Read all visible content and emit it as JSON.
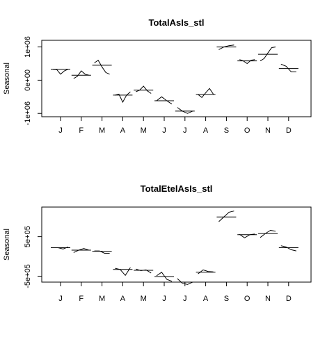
{
  "chart_data": [
    {
      "type": "line",
      "title": "TotalAsIs_stl",
      "ylabel": "Seasonal",
      "xlabel": "",
      "categories": [
        "J",
        "F",
        "M",
        "A",
        "M",
        "J",
        "J",
        "A",
        "S",
        "O",
        "N",
        "D"
      ],
      "ylim": [
        -1100000,
        1200000
      ],
      "yticks": [
        -1000000,
        0,
        1000000
      ],
      "ytick_labels": [
        "-1e+06",
        "0e+00",
        "1e+06"
      ],
      "grid": false,
      "months": [
        {
          "label": "J",
          "mean": 330000,
          "values": [
            330000,
            320000,
            180000,
            280000,
            330000
          ]
        },
        {
          "label": "F",
          "mean": 150000,
          "values": [
            50000,
            120000,
            280000,
            180000,
            150000
          ]
        },
        {
          "label": "M",
          "mean": 450000,
          "values": [
            520000,
            600000,
            400000,
            230000,
            180000
          ]
        },
        {
          "label": "A",
          "mean": -450000,
          "values": [
            -450000,
            -420000,
            -660000,
            -450000,
            -350000
          ]
        },
        {
          "label": "M",
          "mean": -300000,
          "values": [
            -350000,
            -300000,
            -180000,
            -320000,
            -400000
          ]
        },
        {
          "label": "J",
          "mean": -620000,
          "values": [
            -620000,
            -500000,
            -620000,
            -720000
          ]
        },
        {
          "label": "J",
          "mean": -930000,
          "values": [
            -820000,
            -930000,
            -1000000,
            -930000
          ]
        },
        {
          "label": "A",
          "mean": -430000,
          "values": [
            -430000,
            -520000,
            -380000,
            -250000,
            -420000
          ]
        },
        {
          "label": "S",
          "mean": 1000000,
          "values": [
            920000,
            1000000,
            1040000,
            1060000
          ]
        },
        {
          "label": "O",
          "mean": 580000,
          "values": [
            620000,
            580000,
            500000,
            600000,
            620000
          ]
        },
        {
          "label": "N",
          "mean": 780000,
          "values": [
            580000,
            650000,
            820000,
            980000,
            1000000
          ]
        },
        {
          "label": "D",
          "mean": 350000,
          "values": [
            480000,
            420000,
            250000,
            250000
          ]
        }
      ]
    },
    {
      "type": "line",
      "title": "TotalEtelAsIs_stl",
      "ylabel": "Seasonal",
      "xlabel": "",
      "categories": [
        "J",
        "F",
        "M",
        "A",
        "M",
        "J",
        "J",
        "A",
        "S",
        "O",
        "N",
        "D"
      ],
      "ylim": [
        -650000,
        1250000
      ],
      "yticks": [
        -500000,
        500000
      ],
      "ytick_labels": [
        "-5e+05",
        "5e+05"
      ],
      "grid": false,
      "months": [
        {
          "label": "J",
          "mean": 220000,
          "values": [
            220000,
            220000,
            190000,
            240000
          ]
        },
        {
          "label": "F",
          "mean": 160000,
          "values": [
            100000,
            160000,
            200000,
            160000
          ]
        },
        {
          "label": "M",
          "mean": 130000,
          "values": [
            140000,
            140000,
            80000,
            80000
          ]
        },
        {
          "label": "A",
          "mean": -330000,
          "values": [
            -300000,
            -330000,
            -480000,
            -280000
          ]
        },
        {
          "label": "M",
          "mean": -350000,
          "values": [
            -320000,
            -360000,
            -340000,
            -420000
          ]
        },
        {
          "label": "J",
          "mean": -510000,
          "values": [
            -490000,
            -400000,
            -580000,
            -630000
          ]
        },
        {
          "label": "J",
          "mean": -650000,
          "values": [
            -560000,
            -680000,
            -710000,
            -650000
          ]
        },
        {
          "label": "A",
          "mean": -400000,
          "values": [
            -440000,
            -340000,
            -380000,
            -390000
          ]
        },
        {
          "label": "S",
          "mean": 1000000,
          "values": [
            880000,
            1000000,
            1120000,
            1150000
          ]
        },
        {
          "label": "O",
          "mean": 550000,
          "values": [
            560000,
            470000,
            550000,
            570000
          ]
        },
        {
          "label": "N",
          "mean": 580000,
          "values": [
            480000,
            580000,
            660000,
            640000
          ]
        },
        {
          "label": "D",
          "mean": 220000,
          "values": [
            270000,
            240000,
            170000,
            140000
          ]
        }
      ]
    }
  ]
}
